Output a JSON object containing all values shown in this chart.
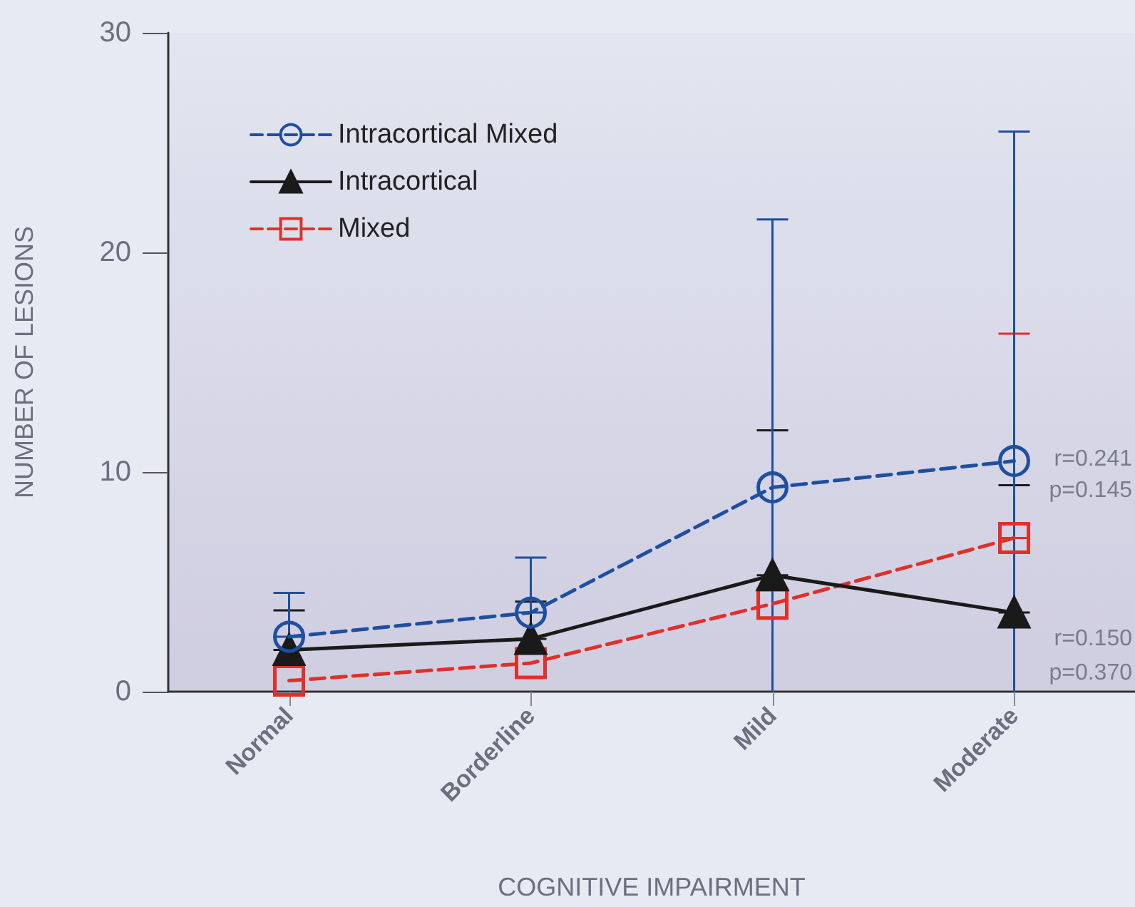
{
  "chart_data": {
    "type": "line",
    "xlabel": "COGNITIVE IMPAIRMENT",
    "ylabel": "NUMBER OF LESIONS",
    "categories": [
      "Normal",
      "Borderline",
      "Mild",
      "Moderate"
    ],
    "ylim": [
      0,
      30
    ],
    "yticks": [
      0,
      10,
      20,
      30
    ],
    "grid": false,
    "legend": "top left",
    "series": [
      {
        "name": "Intracortical Mixed",
        "color": "#1f4fa0",
        "marker": "circle",
        "line_style": "dashed",
        "values": [
          2.5,
          3.6,
          9.3,
          10.5
        ],
        "errors": [
          [
            2.5,
            4.5
          ],
          [
            3.6,
            6.1
          ],
          [
            0,
            21.5
          ],
          [
            0,
            25.5
          ]
        ]
      },
      {
        "name": "Intracortical",
        "color": "#1a1a1a",
        "marker": "triangle",
        "line_style": "solid",
        "values": [
          1.9,
          2.4,
          5.3,
          3.6
        ],
        "errors": [
          [
            1.9,
            3.7
          ],
          [
            2.4,
            4.1
          ],
          [
            5.3,
            11.9
          ],
          [
            3.6,
            9.4
          ]
        ]
      },
      {
        "name": "Mixed",
        "color": "#e0302a",
        "marker": "square",
        "line_style": "dashed",
        "values": [
          0.5,
          1.3,
          4.0,
          7.0
        ],
        "errors": [
          null,
          null,
          null,
          [
            7.0,
            16.3
          ]
        ]
      }
    ],
    "annotations": [
      "r=0.241",
      "p=0.145",
      "r=0.150",
      "p=0.370"
    ]
  }
}
